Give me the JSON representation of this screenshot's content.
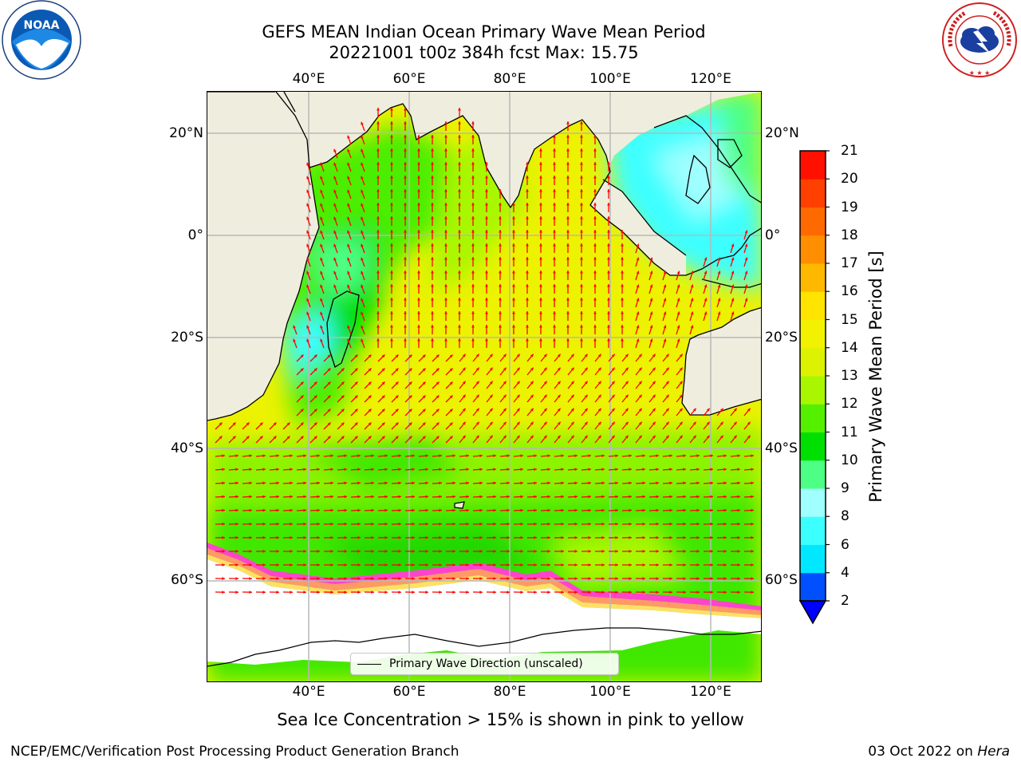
{
  "header": {
    "title_line1": "GEFS MEAN Indian Ocean Primary Wave Mean Period",
    "title_line2": "20221001 t00z 384h fcst   Max: 15.75"
  },
  "logos": {
    "left": "NOAA",
    "right": "NATIONAL WEATHER SERVICE"
  },
  "map": {
    "lon_ticks": [
      "40°E",
      "60°E",
      "80°E",
      "100°E",
      "120°E"
    ],
    "lat_ticks": [
      "20°N",
      "0°",
      "20°S",
      "40°S",
      "60°S"
    ],
    "legend_label": "Primary Wave Direction (unscaled)"
  },
  "colorbar": {
    "label": "Primary Wave Mean Period [s]",
    "ticks": [
      "21",
      "20",
      "19",
      "18",
      "17",
      "16",
      "15",
      "14",
      "13",
      "12",
      "11",
      "10",
      "9",
      "8",
      "6",
      "4",
      "2"
    ]
  },
  "chart_data": {
    "type": "heatmap",
    "title": "GEFS MEAN Indian Ocean Primary Wave Mean Period",
    "subtitle": "20221001 t00z 384h fcst",
    "max_value": 15.75,
    "units": "s",
    "lon_ticks_deg_e": [
      40,
      60,
      80,
      100,
      120
    ],
    "lat_ticks_deg": [
      20,
      0,
      -20,
      -40,
      -60
    ],
    "colorbar_levels": [
      2,
      4,
      6,
      8,
      9,
      10,
      11,
      12,
      13,
      14,
      15,
      16,
      17,
      18,
      19,
      20,
      21
    ],
    "colorbar_colors": [
      "#0050ff",
      "#00e8ff",
      "#3cffff",
      "#a0ffff",
      "#4dff84",
      "#00e000",
      "#55ef00",
      "#a8f700",
      "#dcf200",
      "#f2f200",
      "#ffe400",
      "#ffb800",
      "#ff8f00",
      "#ff6a00",
      "#ff4000",
      "#ff1000"
    ],
    "colorbar_extend_color": "#0000ff",
    "arrow_color": "#ff0000",
    "ice_colors": [
      "#ff44cc",
      "#ff9966",
      "#ffe066"
    ]
  },
  "footer": {
    "subtitle": "Sea Ice Concentration > 15% is shown in pink to yellow",
    "left": "NCEP/EMC/Verification Post Processing Product Generation Branch",
    "right_date": "03 Oct 2022 on ",
    "right_host": "Hera"
  }
}
